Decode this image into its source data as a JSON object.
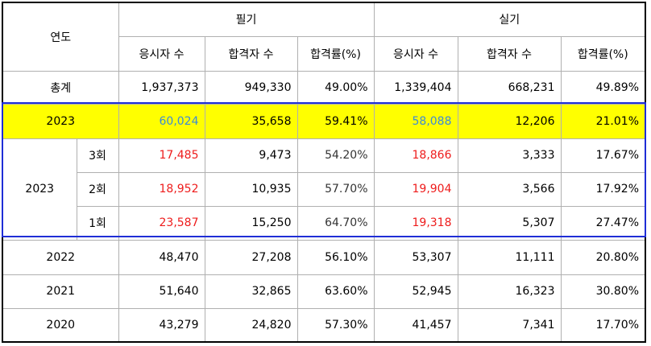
{
  "header": {
    "year_label": "연도",
    "written_label": "필기",
    "practical_label": "실기",
    "col_applicants": "응시자 수",
    "col_passers": "합격자 수",
    "col_rate": "합격률(%)"
  },
  "total": {
    "label": "총계",
    "w_applicants": "1,937,373",
    "w_passers": "949,330",
    "w_rate": "49.00%",
    "p_applicants": "1,339,404",
    "p_passers": "668,231",
    "p_rate": "49.89%"
  },
  "highlight": {
    "label": "2023",
    "w_applicants": "60,024",
    "w_passers": "35,658",
    "w_rate": "59.41%",
    "p_applicants": "58,088",
    "p_passers": "12,206",
    "p_rate": "21.01%",
    "bg_color": "#ffff00",
    "sum_color": "#3c8ad8"
  },
  "rounds": {
    "year": "2023",
    "value_color": "#ee1c1c",
    "items": [
      {
        "round": "3회",
        "w_applicants": "17,485",
        "w_passers": "9,473",
        "w_rate": "54.20%",
        "p_applicants": "18,866",
        "p_passers": "3,333",
        "p_rate": "17.67%"
      },
      {
        "round": "2회",
        "w_applicants": "18,952",
        "w_passers": "10,935",
        "w_rate": "57.70%",
        "p_applicants": "19,904",
        "p_passers": "3,566",
        "p_rate": "17.92%"
      },
      {
        "round": "1회",
        "w_applicants": "23,587",
        "w_passers": "15,250",
        "w_rate": "64.70%",
        "p_applicants": "19,318",
        "p_passers": "5,307",
        "p_rate": "27.47%"
      }
    ]
  },
  "years": [
    {
      "year": "2022",
      "w_applicants": "48,470",
      "w_passers": "27,208",
      "w_rate": "56.10%",
      "p_applicants": "53,307",
      "p_passers": "11,111",
      "p_rate": "20.80%"
    },
    {
      "year": "2021",
      "w_applicants": "51,640",
      "w_passers": "32,865",
      "w_rate": "63.60%",
      "p_applicants": "52,945",
      "p_passers": "16,323",
      "p_rate": "30.80%"
    },
    {
      "year": "2020",
      "w_applicants": "43,279",
      "w_passers": "24,820",
      "w_rate": "57.30%",
      "p_applicants": "41,457",
      "p_passers": "7,341",
      "p_rate": "17.70%"
    }
  ],
  "box_color": "#1f2ed6"
}
